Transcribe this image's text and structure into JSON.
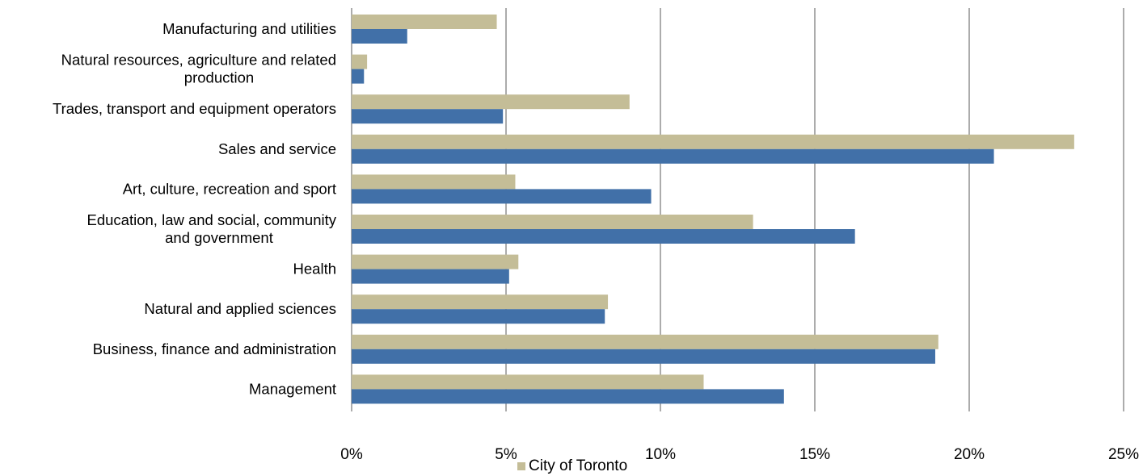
{
  "chart_data": {
    "type": "bar",
    "orientation": "horizontal",
    "title": "",
    "xlabel": "",
    "ylabel": "",
    "xlim": [
      0,
      25
    ],
    "x_ticks": [
      0,
      5,
      10,
      15,
      20,
      25
    ],
    "x_tick_labels": [
      "0%",
      "5%",
      "10%",
      "15%",
      "20%",
      "25%"
    ],
    "grid": "vertical",
    "legend_position": "bottom",
    "categories": [
      [
        "Manufacturing and utilities"
      ],
      [
        "Natural resources, agriculture and related",
        "production"
      ],
      [
        "Trades, transport and equipment operators"
      ],
      [
        "Sales and service"
      ],
      [
        "Art, culture, recreation and sport"
      ],
      [
        "Education, law and social, community",
        "and government"
      ],
      [
        "Health"
      ],
      [
        "Natural and applied sciences"
      ],
      [
        "Business, finance and administration"
      ],
      [
        "Management"
      ]
    ],
    "series": [
      {
        "name": "City of Toronto",
        "color": "#c4bd97",
        "values": [
          4.7,
          0.5,
          9.0,
          23.4,
          5.3,
          13.0,
          5.4,
          8.3,
          19.0,
          11.4
        ]
      },
      {
        "color": "#4170a8",
        "values": [
          1.8,
          0.4,
          4.9,
          20.8,
          9.7,
          16.3,
          5.1,
          8.2,
          18.9,
          14.0
        ]
      }
    ]
  }
}
